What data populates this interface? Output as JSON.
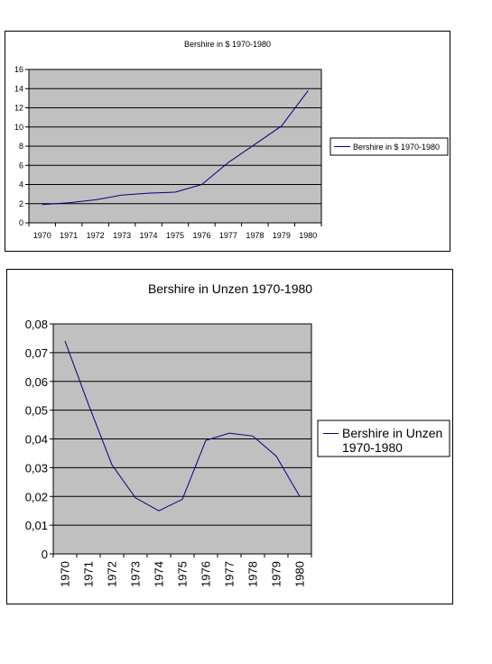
{
  "chart_data": [
    {
      "type": "line",
      "title": "Bershire in $ 1970-1980",
      "xlabel": "",
      "ylabel": "",
      "categories": [
        "1970",
        "1971",
        "1972",
        "1973",
        "1974",
        "1975",
        "1976",
        "1977",
        "1978",
        "1979",
        "1980"
      ],
      "series": [
        {
          "name": "Bershire in $ 1970-1980",
          "values": [
            1.9,
            2.1,
            2.4,
            2.9,
            3.1,
            3.2,
            4.0,
            6.3,
            8.2,
            10.1,
            13.8
          ]
        }
      ],
      "ylim": [
        0,
        16
      ],
      "yticks": [
        "0",
        "2",
        "4",
        "6",
        "8",
        "10",
        "12",
        "14",
        "16"
      ],
      "grid": true,
      "legend": "right",
      "colors": {
        "line": "#000080",
        "plot_bg": "#c0c0c0",
        "grid": "#000000"
      }
    },
    {
      "type": "line",
      "title": "Bershire in Unzen 1970-1980",
      "xlabel": "",
      "ylabel": "",
      "categories": [
        "1970",
        "1971",
        "1972",
        "1973",
        "1974",
        "1975",
        "1976",
        "1977",
        "1978",
        "1979",
        "1980"
      ],
      "series": [
        {
          "name": "Bershire in Unzen 1970-1980",
          "values": [
            0.074,
            0.052,
            0.031,
            0.0195,
            0.015,
            0.019,
            0.0395,
            0.042,
            0.041,
            0.034,
            0.02
          ]
        }
      ],
      "ylim": [
        0,
        0.08
      ],
      "yticks": [
        "0",
        "0,01",
        "0,02",
        "0,03",
        "0,04",
        "0,05",
        "0,06",
        "0,07",
        "0,08"
      ],
      "grid": true,
      "legend": "right",
      "colors": {
        "line": "#000080",
        "plot_bg": "#c0c0c0",
        "grid": "#000000"
      }
    }
  ]
}
